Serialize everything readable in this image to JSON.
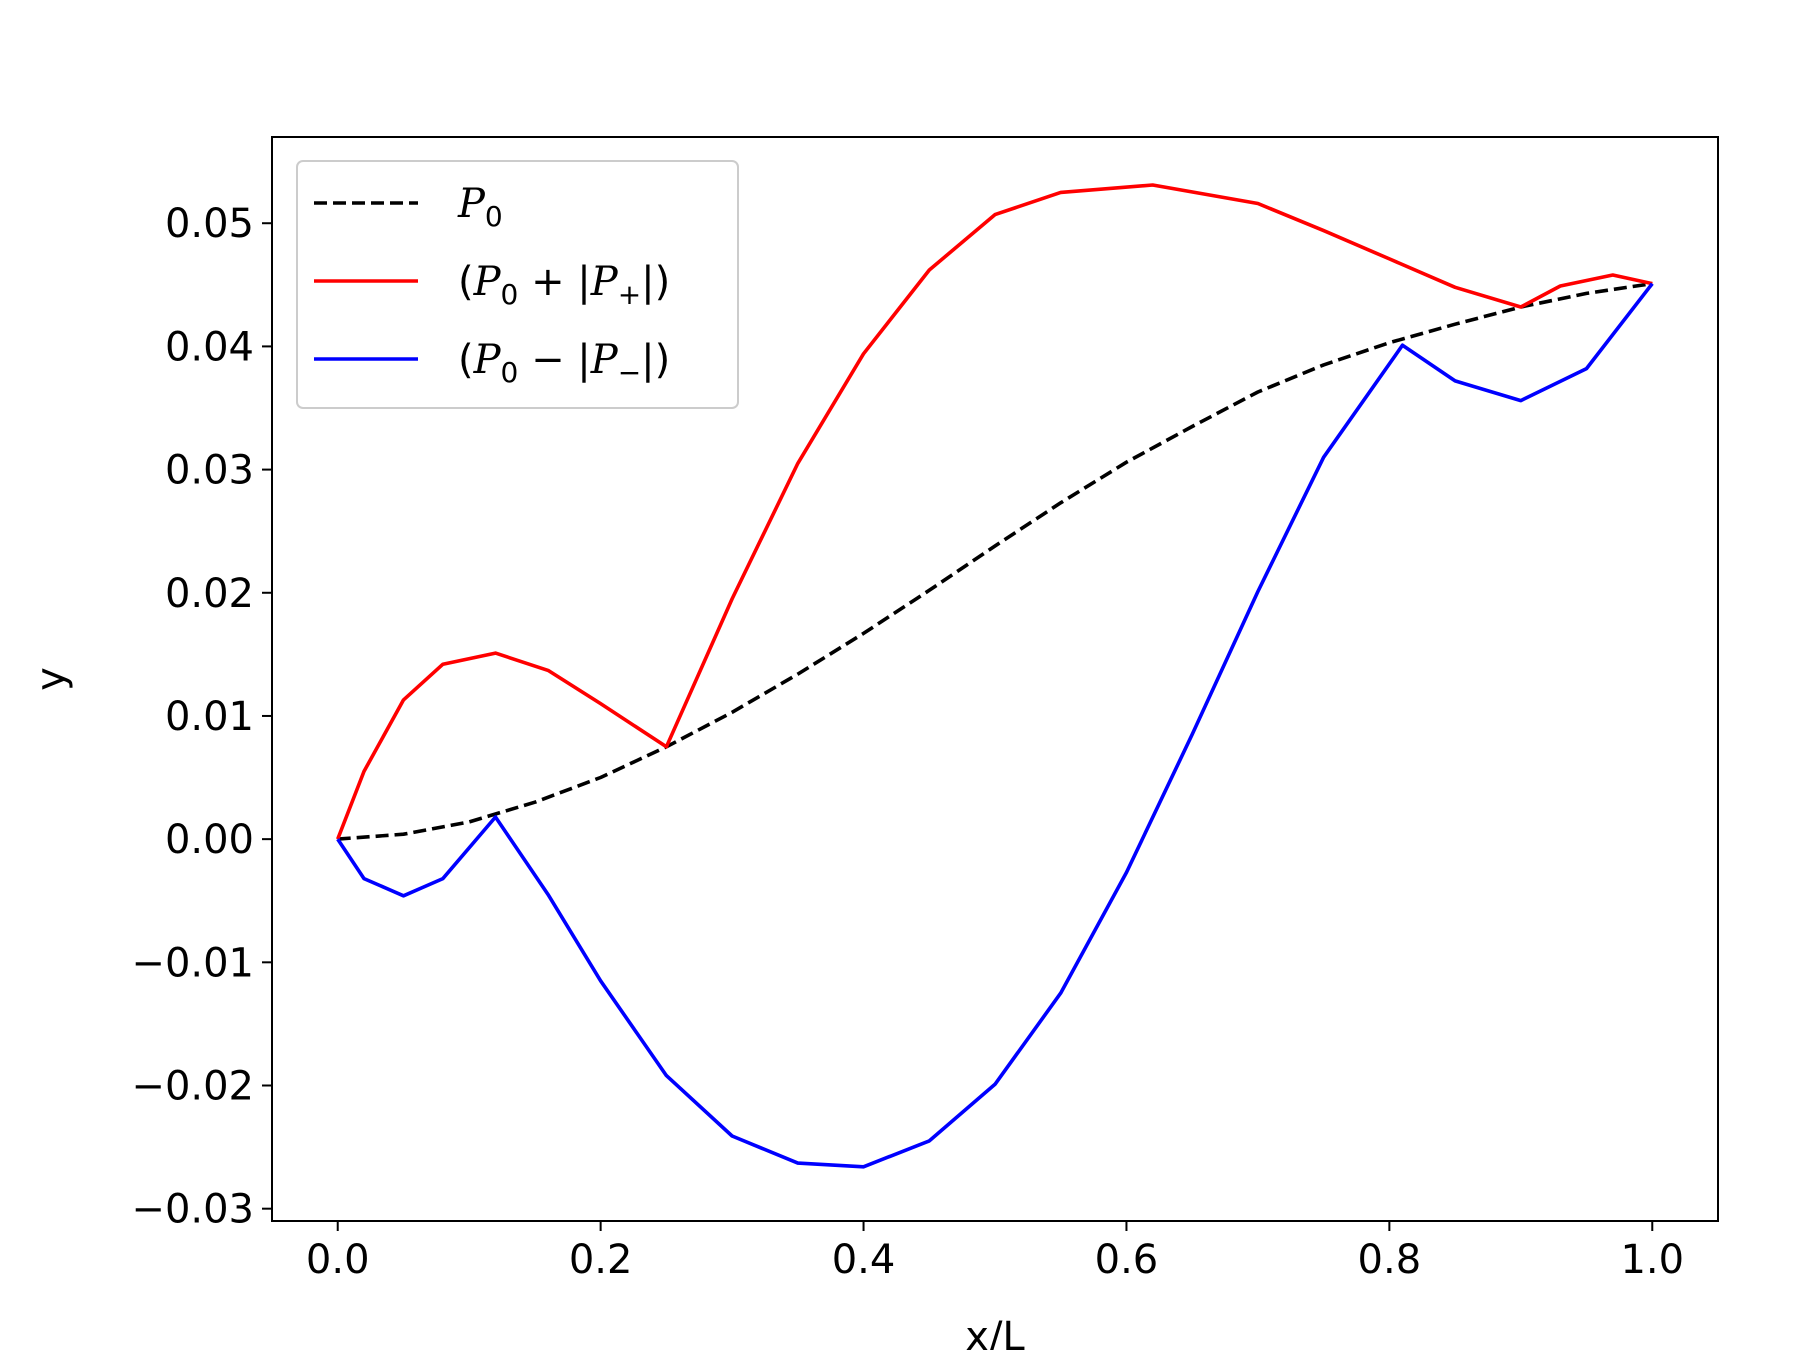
{
  "chart_data": {
    "type": "line",
    "xlabel": "x/L",
    "ylabel": "y",
    "xlim": [
      -0.05,
      1.05
    ],
    "ylim": [
      -0.031,
      0.057
    ],
    "x_ticks": [
      0.0,
      0.2,
      0.4,
      0.6,
      0.8,
      1.0
    ],
    "x_tick_labels": [
      "0.0",
      "0.2",
      "0.4",
      "0.6",
      "0.8",
      "1.0"
    ],
    "y_ticks": [
      -0.03,
      -0.02,
      -0.01,
      0.0,
      0.01,
      0.02,
      0.03,
      0.04,
      0.05
    ],
    "y_tick_labels": [
      "−0.03",
      "−0.02",
      "−0.01",
      "0.00",
      "0.01",
      "0.02",
      "0.03",
      "0.04",
      "0.05"
    ],
    "grid": false,
    "legend_position": "top-left",
    "series": [
      {
        "name": "P0",
        "legend": {
          "open": "",
          "sym": "P",
          "sub": "0",
          "op": "",
          "abs_sub": "",
          "close": ""
        },
        "color": "#000000",
        "style": "dashed",
        "x": [
          0.0,
          0.05,
          0.1,
          0.15,
          0.2,
          0.25,
          0.3,
          0.35,
          0.4,
          0.45,
          0.5,
          0.55,
          0.6,
          0.65,
          0.7,
          0.75,
          0.8,
          0.85,
          0.9,
          0.95,
          1.0
        ],
        "y": [
          0.0,
          0.0004,
          0.0014,
          0.003,
          0.005,
          0.0075,
          0.0103,
          0.0134,
          0.0167,
          0.0202,
          0.0238,
          0.0273,
          0.0306,
          0.0335,
          0.0363,
          0.0385,
          0.0403,
          0.0418,
          0.0432,
          0.0443,
          0.0451
        ]
      },
      {
        "name": "(P0 + |P+|)",
        "legend": {
          "open": "(",
          "sym": "P",
          "sub": "0",
          "op": " + |",
          "abs_sub": "+",
          "close": "|)"
        },
        "color": "#ff0000",
        "style": "solid",
        "x": [
          0.0,
          0.02,
          0.05,
          0.08,
          0.12,
          0.16,
          0.2,
          0.25,
          0.3,
          0.35,
          0.4,
          0.45,
          0.5,
          0.55,
          0.62,
          0.7,
          0.75,
          0.8,
          0.85,
          0.9,
          0.93,
          0.97,
          1.0
        ],
        "y": [
          0.0,
          0.0055,
          0.0113,
          0.0142,
          0.0151,
          0.0137,
          0.011,
          0.0075,
          0.0195,
          0.0305,
          0.0394,
          0.0462,
          0.0507,
          0.0525,
          0.0531,
          0.0516,
          0.0494,
          0.0471,
          0.0448,
          0.0432,
          0.0449,
          0.0458,
          0.0451
        ]
      },
      {
        "name": "(P0 − |P−|)",
        "legend": {
          "open": "(",
          "sym": "P",
          "sub": "0",
          "op": " − |",
          "abs_sub": "−",
          "close": "|)"
        },
        "color": "#0000ff",
        "style": "solid",
        "x": [
          0.0,
          0.02,
          0.05,
          0.08,
          0.12,
          0.16,
          0.2,
          0.25,
          0.3,
          0.35,
          0.4,
          0.45,
          0.5,
          0.55,
          0.6,
          0.65,
          0.7,
          0.75,
          0.81,
          0.85,
          0.9,
          0.95,
          1.0
        ],
        "y": [
          0.0,
          -0.0032,
          -0.0046,
          -0.0032,
          0.0018,
          -0.0045,
          -0.0115,
          -0.0192,
          -0.0241,
          -0.0263,
          -0.0266,
          -0.0245,
          -0.0199,
          -0.0125,
          -0.0027,
          0.0085,
          0.0201,
          0.031,
          0.0401,
          0.0372,
          0.0356,
          0.0382,
          0.0451
        ]
      }
    ]
  }
}
